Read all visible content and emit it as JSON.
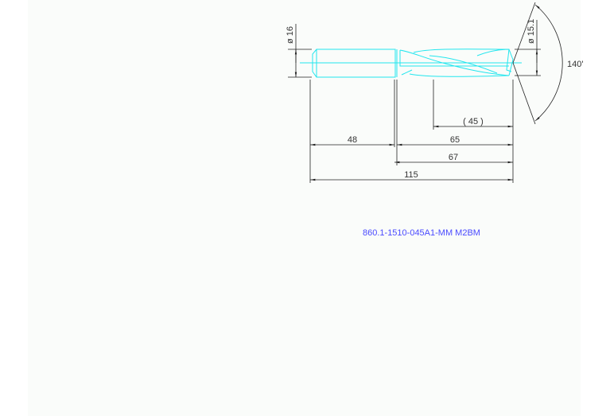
{
  "drawing": {
    "part_number": "860.1-1510-045A1-MM M2BM",
    "dimensions": {
      "shank_diameter": "ø 16",
      "drill_diameter": "ø 15.1",
      "point_angle": "140'",
      "flute_length": "( 45 )",
      "shank_length": "48",
      "body_length": "65",
      "usable_length": "67",
      "overall_length": "115"
    },
    "colors": {
      "tool": "#22e6ee",
      "dimension": "#222222",
      "part_number": "#4a4aff"
    }
  }
}
